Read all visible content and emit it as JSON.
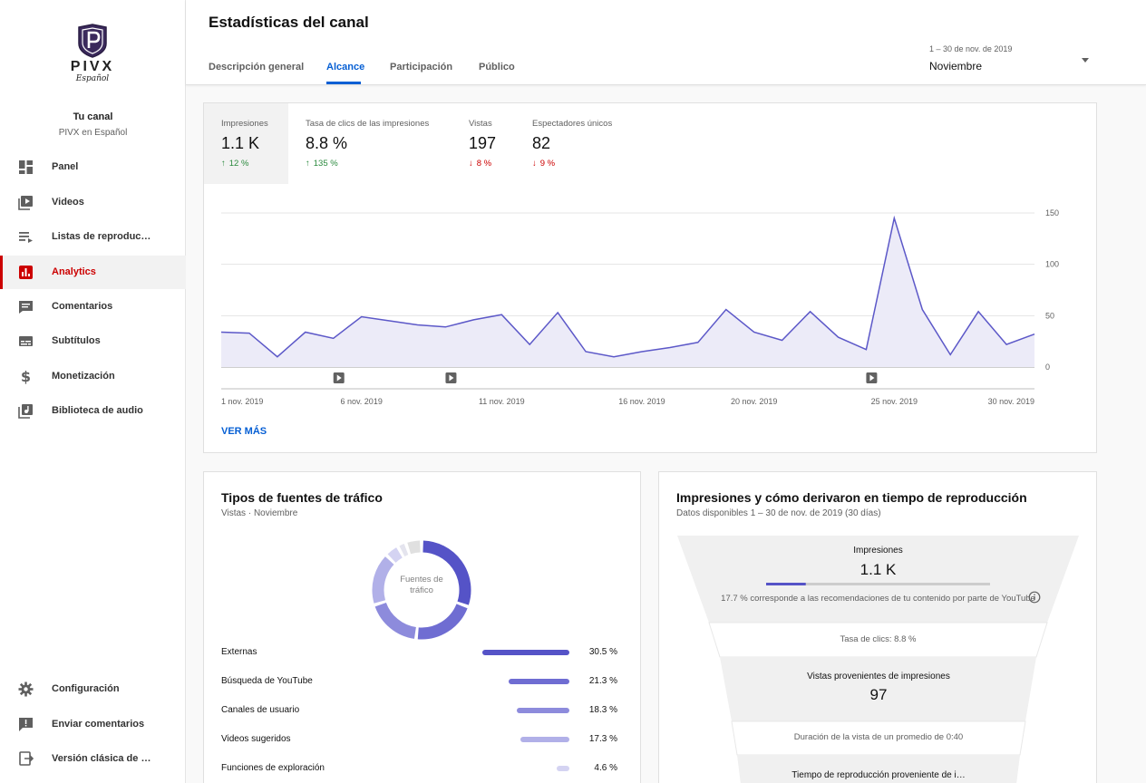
{
  "sidebar": {
    "logo_text": "PIVX",
    "logo_script": "Español",
    "channel_title": "Tu canal",
    "channel_name": "PIVX en Español",
    "items": [
      {
        "label": "Panel",
        "icon": "dashboard-icon"
      },
      {
        "label": "Videos",
        "icon": "video-library-icon"
      },
      {
        "label": "Listas de reproducci…",
        "icon": "playlist-icon"
      },
      {
        "label": "Analytics",
        "icon": "analytics-icon"
      },
      {
        "label": "Comentarios",
        "icon": "comment-icon"
      },
      {
        "label": "Subtítulos",
        "icon": "subtitles-icon"
      },
      {
        "label": "Monetización",
        "icon": "dollar-icon"
      },
      {
        "label": "Biblioteca de audio",
        "icon": "audio-library-icon"
      }
    ],
    "bottom_items": [
      {
        "label": "Configuración",
        "icon": "gear-icon"
      },
      {
        "label": "Enviar comentarios",
        "icon": "feedback-icon"
      },
      {
        "label": "Versión clásica de Creat…",
        "icon": "classic-studio-icon"
      }
    ],
    "active_color": "#cc0000"
  },
  "header": {
    "title": "Estadísticas del canal",
    "tabs": [
      {
        "label": "Descripción general"
      },
      {
        "label": "Alcance"
      },
      {
        "label": "Participación"
      },
      {
        "label": "Público"
      }
    ],
    "active_tab": "Alcance",
    "date_range": "1 – 30 de nov. de 2019",
    "date_value": "Noviembre"
  },
  "metrics": [
    {
      "label": "Impresiones",
      "value": "1.1 K",
      "delta": "12 %",
      "direction": "up"
    },
    {
      "label": "Tasa de clics de las impresiones",
      "value": "8.8 %",
      "delta": "135 %",
      "direction": "up"
    },
    {
      "label": "Vistas",
      "value": "197",
      "delta": "8 %",
      "direction": "down"
    },
    {
      "label": "Espectadores únicos",
      "value": "82",
      "delta": "9 %",
      "direction": "down"
    }
  ],
  "chart_data": {
    "type": "area",
    "x_ticks": [
      "1 nov. 2019",
      "6 nov. 2019",
      "11 nov. 2019",
      "16 nov. 2019",
      "20 nov. 2019",
      "25 nov. 2019",
      "30 nov. 2019"
    ],
    "x_tick_days": [
      1,
      6,
      11,
      16,
      20,
      25,
      30
    ],
    "y_ticks": [
      "150",
      "100",
      "50",
      "0"
    ],
    "ylim": [
      0,
      150
    ],
    "series": [
      {
        "values": [
          34,
          33,
          10,
          34,
          28,
          49,
          45,
          41,
          39,
          46,
          51,
          22,
          53,
          15,
          10,
          15,
          19,
          24,
          56,
          34,
          26,
          54,
          29,
          17,
          145,
          56,
          12,
          54,
          22,
          32
        ]
      }
    ],
    "video_markers_day": [
      5,
      9,
      24
    ],
    "line_color": "#5c58c8",
    "fill_color": "#ecebf8"
  },
  "see_more": "VER MÁS",
  "traffic": {
    "title": "Tipos de fuentes de tráfico",
    "subtitle": "Vistas · Noviembre",
    "donut_center": "Fuentes de tráfico",
    "sources": [
      {
        "name": "Externas",
        "pct": 30.5,
        "label": "30.5 %",
        "color": "#5553c7"
      },
      {
        "name": "Búsqueda de YouTube",
        "pct": 21.3,
        "label": "21.3 %",
        "color": "#6f6dd2"
      },
      {
        "name": "Canales de usuario",
        "pct": 18.3,
        "label": "18.3 %",
        "color": "#8d8bdc"
      },
      {
        "name": "Videos sugeridos",
        "pct": 17.3,
        "label": "17.3 %",
        "color": "#b1b0e8"
      },
      {
        "name": "Funciones de exploración",
        "pct": 4.6,
        "label": "4.6 %",
        "color": "#d4d3f2"
      }
    ],
    "other_pct": 8.0
  },
  "funnel": {
    "title": "Impresiones y cómo derivaron en tiempo de reproducción",
    "subtitle": "Datos disponibles 1 – 30 de nov. de 2019 (30 días)",
    "impressions_label": "Impresiones",
    "impressions_value": "1.1 K",
    "recommendation_fraction": 0.177,
    "recommendation_note": "17.7 % corresponde a las recomendaciones de tu contenido por parte de YouTube",
    "ctr": "Tasa de clics: 8.8 %",
    "views_label": "Vistas provenientes de impresiones",
    "views_value": "97",
    "avg_duration": "Duración de la vista de un promedio de 0:40",
    "watch_time_label": "Tiempo de reproducción proveniente de i…"
  }
}
